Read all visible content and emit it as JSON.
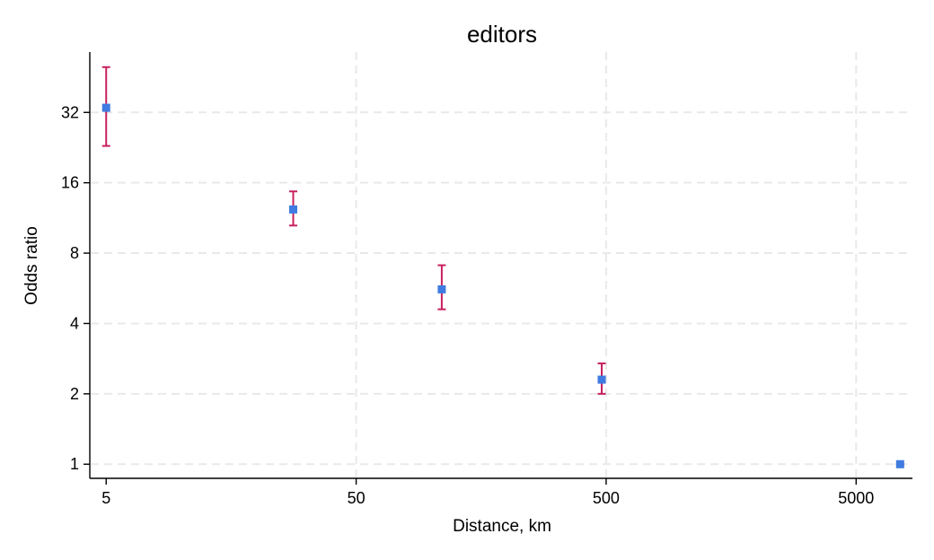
{
  "chart_data": {
    "type": "scatter",
    "title": "editors",
    "xlabel": "Distance, km",
    "ylabel": "Odds ratio",
    "x_scale": "log",
    "y_scale": "log",
    "xlim": [
      4.3,
      8400
    ],
    "ylim": [
      0.87,
      58
    ],
    "x_ticks": [
      5,
      50,
      500,
      5000
    ],
    "x_tick_labels": [
      "5",
      "50",
      "500",
      "5000"
    ],
    "y_ticks": [
      1,
      2,
      4,
      8,
      16,
      32
    ],
    "y_tick_labels": [
      "1",
      "2",
      "4",
      "8",
      "16",
      "32"
    ],
    "grid": true,
    "legend": "none",
    "colors": {
      "marker": "#3f7be0",
      "error_bar": "#c8205e",
      "grid": "#e9e9e9"
    },
    "points": [
      {
        "x": 5,
        "y": 33.5,
        "ci_low": 23,
        "ci_high": 50
      },
      {
        "x": 28,
        "y": 12.3,
        "ci_low": 10.5,
        "ci_high": 14.7
      },
      {
        "x": 110,
        "y": 5.6,
        "ci_low": 4.6,
        "ci_high": 7.1
      },
      {
        "x": 480,
        "y": 2.3,
        "ci_low": 2.0,
        "ci_high": 2.7
      },
      {
        "x": 7500,
        "y": 1.0,
        "ci_low": 1.0,
        "ci_high": 1.0
      }
    ]
  }
}
